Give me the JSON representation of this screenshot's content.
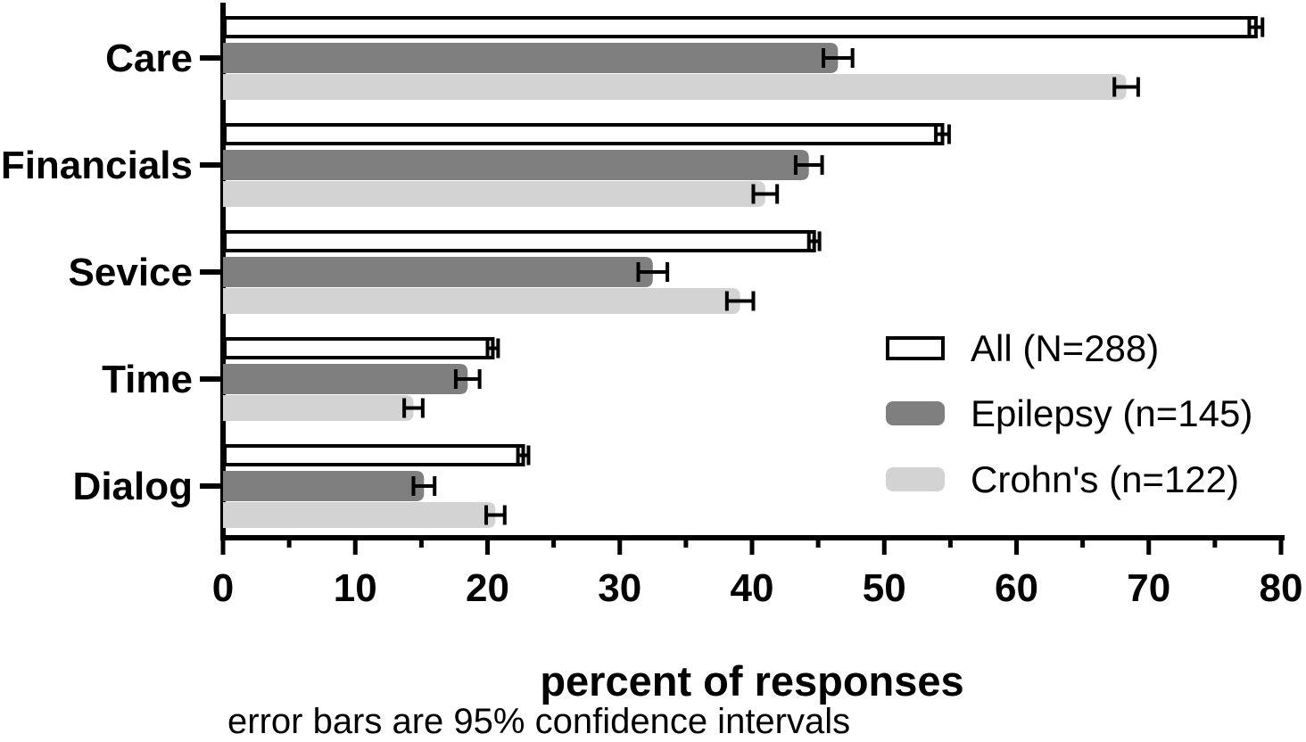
{
  "chart_data": {
    "type": "bar",
    "orientation": "horizontal",
    "title": "",
    "xlabel": "percent of responses",
    "footnote": "error bars are 95% confidence intervals",
    "categories": [
      "Care",
      "Financials",
      "Sevice",
      "Time",
      "Dialog"
    ],
    "xlim": [
      0,
      80
    ],
    "x_major_ticks": [
      0,
      10,
      20,
      30,
      40,
      50,
      60,
      70,
      80
    ],
    "x_minor_step": 5,
    "grid": false,
    "legend_position": "inside-right-middle",
    "error_bar_meaning": "95% confidence intervals",
    "series": [
      {
        "name": "All (N=288)",
        "style": "outline",
        "fill": "#ffffff",
        "stroke": "#000000",
        "values": [
          78.1,
          54.4,
          44.7,
          20.4,
          22.7
        ],
        "errors": [
          0.5,
          0.5,
          0.4,
          0.4,
          0.4
        ]
      },
      {
        "name": "Epilepsy (n=145)",
        "style": "solid",
        "fill": "#7f7f7f",
        "values": [
          46.5,
          44.3,
          32.5,
          18.5,
          15.2
        ],
        "errors": [
          1.1,
          1.0,
          1.1,
          0.9,
          0.8
        ]
      },
      {
        "name": "Crohn's (n=122)",
        "style": "solid",
        "fill": "#d3d3d3",
        "values": [
          68.3,
          41.0,
          39.1,
          14.4,
          20.6
        ],
        "errors": [
          0.9,
          0.9,
          1.0,
          0.7,
          0.7
        ]
      }
    ]
  },
  "colors": {
    "axis": "#000000",
    "text": "#000000",
    "background": "#ffffff",
    "bar_outline": "#000000",
    "bar_dark_gray": "#7f7f7f",
    "bar_light_gray": "#d3d3d3"
  }
}
